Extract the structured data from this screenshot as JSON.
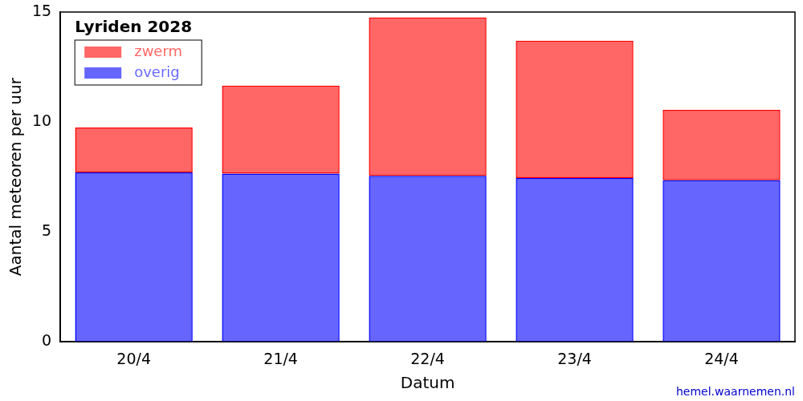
{
  "chart_data": {
    "type": "bar",
    "title": "Lyriden 2028",
    "x_label": "Datum",
    "y_label": "Aantal meteoren per uur",
    "source": "hemel.waarnemen.nl",
    "categories": [
      "20/4",
      "21/4",
      "22/4",
      "23/4",
      "24/4"
    ],
    "series": [
      {
        "name": "zwerm",
        "color": "#ff0000",
        "values": [
          2.05,
          4.0,
          7.2,
          6.25,
          3.2
        ]
      },
      {
        "name": "overig",
        "color": "#0000ff",
        "values": [
          7.7,
          7.65,
          7.55,
          7.45,
          7.35
        ]
      }
    ],
    "stacked": true,
    "legend": "upper left",
    "grid": false,
    "ylim": [
      0,
      15
    ],
    "yticks": [
      0,
      5,
      10,
      15
    ]
  }
}
